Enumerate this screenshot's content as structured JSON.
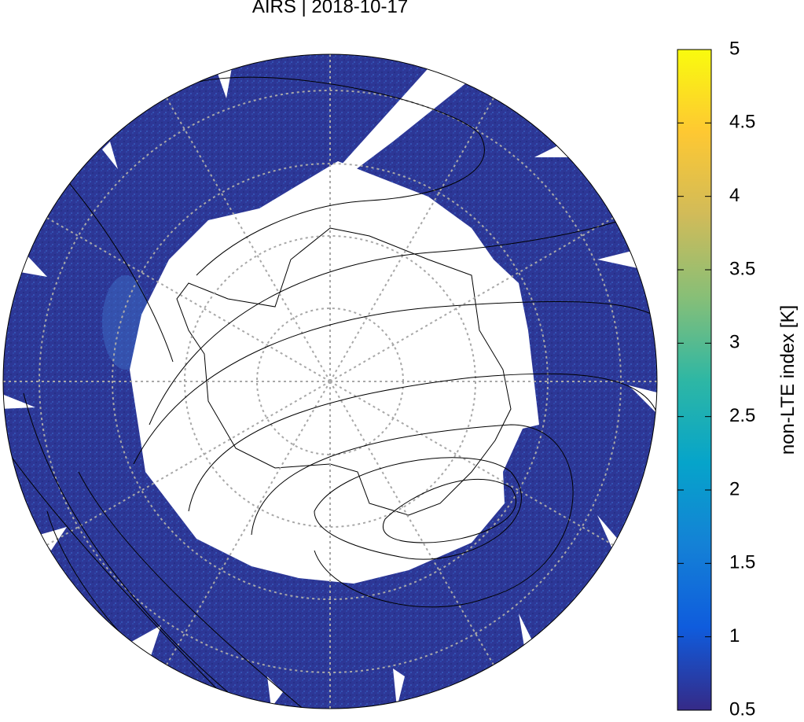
{
  "title": "AIRS | 2018-10-17",
  "colorbar": {
    "label": "non-LTE index [K]",
    "lim": [
      0.5,
      5
    ],
    "ticks": [
      0.5,
      1,
      1.5,
      2,
      2.5,
      3,
      3.5,
      4,
      4.5,
      5
    ],
    "colors": [
      "#352a87",
      "#0f5cdd",
      "#1481d6",
      "#06a4ca",
      "#2eb7a4",
      "#87bf77",
      "#d1bb59",
      "#fec832",
      "#f9fb0e"
    ]
  }
}
